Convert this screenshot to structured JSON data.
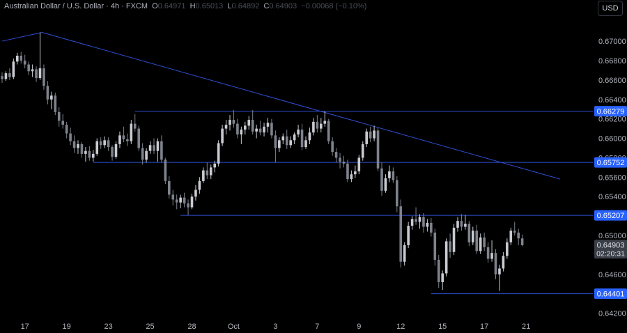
{
  "header": {
    "symbol": "Australian Dollar / U.S. Dollar · 4h · FXCM",
    "open_label": "O",
    "open": "0.64971",
    "high_label": "H",
    "high": "0.65013",
    "low_label": "L",
    "low": "0.64892",
    "close_label": "C",
    "close": "0.64903",
    "change": "−0.00068 (−0.10%)"
  },
  "currency_button": "USD",
  "colors": {
    "background": "#000000",
    "candle": "#c9cbd1",
    "candle_dim": "#7e828c",
    "line": "#2f4fd6",
    "label_blue": "#2962ff",
    "label_gray": "#3a3e47"
  },
  "chart_data": {
    "type": "candlestick",
    "ylim": [
      0.6414,
      0.6728
    ],
    "y_ticks": [
      "0.64200",
      "0.64400",
      "0.64600",
      "0.64800",
      "0.65000",
      "0.65200",
      "0.65400",
      "0.65600",
      "0.65800",
      "0.66000",
      "0.66200",
      "0.66400",
      "0.66600",
      "0.66800",
      "0.67000"
    ],
    "x_ticks": [
      {
        "label": "17",
        "i": 6
      },
      {
        "label": "19",
        "i": 17
      },
      {
        "label": "23",
        "i": 28
      },
      {
        "label": "25",
        "i": 39
      },
      {
        "label": "28",
        "i": 50
      },
      {
        "label": "Oct",
        "i": 61
      },
      {
        "label": "3",
        "i": 72
      },
      {
        "label": "7",
        "i": 83
      },
      {
        "label": "9",
        "i": 94
      },
      {
        "label": "12",
        "i": 105
      },
      {
        "label": "15",
        "i": 116
      },
      {
        "label": "17",
        "i": 127
      },
      {
        "label": "21",
        "i": 138
      }
    ],
    "levels": [
      {
        "value": 0.66279,
        "label": "0.66279",
        "from_i": 35
      },
      {
        "value": 0.65752,
        "label": "0.65752",
        "from_i": 24
      },
      {
        "value": 0.65207,
        "label": "0.65207",
        "from_i": 47
      },
      {
        "value": 0.64401,
        "label": "0.64401",
        "from_i": 113
      }
    ],
    "trendlines": [
      {
        "from": [
          0,
          0.67
        ],
        "to": [
          10.5,
          0.6709
        ]
      },
      {
        "from": [
          10.5,
          0.6709
        ],
        "to": [
          147,
          0.6558
        ]
      }
    ],
    "last_price": {
      "value": 0.64903,
      "label": "0.64903",
      "countdown": "02:20:31"
    },
    "candles": [
      [
        0.6664,
        0.6668,
        0.6657,
        0.6661
      ],
      [
        0.6661,
        0.6669,
        0.6659,
        0.6667
      ],
      [
        0.6667,
        0.6672,
        0.666,
        0.6663
      ],
      [
        0.6663,
        0.6682,
        0.6661,
        0.6679
      ],
      [
        0.6679,
        0.6688,
        0.6676,
        0.6685
      ],
      [
        0.6685,
        0.6689,
        0.6677,
        0.668
      ],
      [
        0.668,
        0.6686,
        0.6672,
        0.6676
      ],
      [
        0.6676,
        0.6679,
        0.6665,
        0.6669
      ],
      [
        0.6669,
        0.6676,
        0.6663,
        0.6671
      ],
      [
        0.6671,
        0.6674,
        0.6658,
        0.6662
      ],
      [
        0.6662,
        0.6709,
        0.666,
        0.6672
      ],
      [
        0.6672,
        0.6676,
        0.665,
        0.6654
      ],
      [
        0.6654,
        0.6659,
        0.6635,
        0.664
      ],
      [
        0.664,
        0.6648,
        0.663,
        0.6644
      ],
      [
        0.6644,
        0.6647,
        0.6624,
        0.6627
      ],
      [
        0.6627,
        0.6632,
        0.6612,
        0.6618
      ],
      [
        0.6618,
        0.6625,
        0.661,
        0.6614
      ],
      [
        0.6614,
        0.6617,
        0.66,
        0.6605
      ],
      [
        0.6605,
        0.6611,
        0.6593,
        0.6597
      ],
      [
        0.6597,
        0.6603,
        0.6585,
        0.659
      ],
      [
        0.659,
        0.6598,
        0.6584,
        0.6594
      ],
      [
        0.6594,
        0.6596,
        0.658,
        0.6584
      ],
      [
        0.6584,
        0.6591,
        0.6576,
        0.6587
      ],
      [
        0.6587,
        0.6592,
        0.6577,
        0.658
      ],
      [
        0.658,
        0.6588,
        0.6576,
        0.6584
      ],
      [
        0.6584,
        0.66,
        0.6582,
        0.6597
      ],
      [
        0.6597,
        0.6601,
        0.6589,
        0.6593
      ],
      [
        0.6593,
        0.6602,
        0.659,
        0.6598
      ],
      [
        0.6598,
        0.6601,
        0.6587,
        0.6591
      ],
      [
        0.6591,
        0.6593,
        0.6577,
        0.6581
      ],
      [
        0.6581,
        0.6597,
        0.6579,
        0.6594
      ],
      [
        0.6594,
        0.6607,
        0.659,
        0.6603
      ],
      [
        0.6603,
        0.6612,
        0.6596,
        0.6599
      ],
      [
        0.6599,
        0.6605,
        0.6592,
        0.6597
      ],
      [
        0.6597,
        0.6619,
        0.6594,
        0.6615
      ],
      [
        0.6615,
        0.6625,
        0.6607,
        0.661
      ],
      [
        0.661,
        0.6613,
        0.6587,
        0.659
      ],
      [
        0.659,
        0.6595,
        0.6573,
        0.6578
      ],
      [
        0.6578,
        0.659,
        0.6575,
        0.6587
      ],
      [
        0.6587,
        0.6597,
        0.6584,
        0.6593
      ],
      [
        0.6593,
        0.66,
        0.6584,
        0.6587
      ],
      [
        0.6587,
        0.66,
        0.6576,
        0.6597
      ],
      [
        0.6597,
        0.6603,
        0.6575,
        0.6578
      ],
      [
        0.6578,
        0.658,
        0.6553,
        0.6556
      ],
      [
        0.6556,
        0.6561,
        0.6538,
        0.6542
      ],
      [
        0.6542,
        0.6547,
        0.6531,
        0.6537
      ],
      [
        0.6537,
        0.6542,
        0.6527,
        0.6534
      ],
      [
        0.6534,
        0.6542,
        0.6528,
        0.6539
      ],
      [
        0.6539,
        0.6544,
        0.6529,
        0.6533
      ],
      [
        0.6533,
        0.6537,
        0.6521,
        0.6529
      ],
      [
        0.6529,
        0.6543,
        0.6527,
        0.654
      ],
      [
        0.654,
        0.6552,
        0.6536,
        0.6547
      ],
      [
        0.6547,
        0.656,
        0.6543,
        0.6556
      ],
      [
        0.6556,
        0.657,
        0.6554,
        0.6567
      ],
      [
        0.6567,
        0.6575,
        0.6558,
        0.6562
      ],
      [
        0.6562,
        0.6573,
        0.6558,
        0.657
      ],
      [
        0.657,
        0.6577,
        0.6565,
        0.6574
      ],
      [
        0.6574,
        0.6598,
        0.6571,
        0.6595
      ],
      [
        0.6595,
        0.6614,
        0.6592,
        0.661
      ],
      [
        0.661,
        0.6619,
        0.6604,
        0.6614
      ],
      [
        0.6614,
        0.6624,
        0.6608,
        0.6619
      ],
      [
        0.6619,
        0.6629,
        0.6611,
        0.6615
      ],
      [
        0.6615,
        0.662,
        0.66,
        0.6604
      ],
      [
        0.6604,
        0.6612,
        0.6594,
        0.6609
      ],
      [
        0.6609,
        0.6617,
        0.6604,
        0.6613
      ],
      [
        0.6613,
        0.6623,
        0.6609,
        0.6619
      ],
      [
        0.6619,
        0.6629,
        0.6604,
        0.6607
      ],
      [
        0.6607,
        0.6614,
        0.66,
        0.661
      ],
      [
        0.661,
        0.6618,
        0.6603,
        0.6606
      ],
      [
        0.6606,
        0.6616,
        0.6602,
        0.6612
      ],
      [
        0.6612,
        0.6621,
        0.6606,
        0.6616
      ],
      [
        0.6616,
        0.662,
        0.66,
        0.6603
      ],
      [
        0.6603,
        0.6608,
        0.6575,
        0.659
      ],
      [
        0.659,
        0.6601,
        0.6586,
        0.6598
      ],
      [
        0.6598,
        0.6605,
        0.6594,
        0.6602
      ],
      [
        0.6602,
        0.6609,
        0.6589,
        0.6593
      ],
      [
        0.6593,
        0.6602,
        0.659,
        0.6598
      ],
      [
        0.6598,
        0.6606,
        0.6594,
        0.6604
      ],
      [
        0.6604,
        0.6614,
        0.6601,
        0.6609
      ],
      [
        0.6609,
        0.6615,
        0.6588,
        0.6591
      ],
      [
        0.6591,
        0.6602,
        0.6589,
        0.6598
      ],
      [
        0.6598,
        0.6611,
        0.6594,
        0.6606
      ],
      [
        0.6606,
        0.6621,
        0.6603,
        0.6617
      ],
      [
        0.6617,
        0.6624,
        0.6606,
        0.661
      ],
      [
        0.661,
        0.6621,
        0.6606,
        0.6615
      ],
      [
        0.6615,
        0.6628,
        0.6612,
        0.6618
      ],
      [
        0.6618,
        0.662,
        0.6594,
        0.6597
      ],
      [
        0.6597,
        0.6601,
        0.6582,
        0.6586
      ],
      [
        0.6586,
        0.659,
        0.6575,
        0.658
      ],
      [
        0.658,
        0.6585,
        0.6569,
        0.6576
      ],
      [
        0.6576,
        0.6582,
        0.657,
        0.6574
      ],
      [
        0.6574,
        0.6578,
        0.6555,
        0.6558
      ],
      [
        0.6558,
        0.6567,
        0.6555,
        0.6563
      ],
      [
        0.6563,
        0.6572,
        0.6559,
        0.6566
      ],
      [
        0.6566,
        0.6583,
        0.6563,
        0.658
      ],
      [
        0.658,
        0.6597,
        0.6577,
        0.6594
      ],
      [
        0.6594,
        0.661,
        0.6591,
        0.6607
      ],
      [
        0.6607,
        0.6612,
        0.6596,
        0.66
      ],
      [
        0.66,
        0.6613,
        0.6597,
        0.6608
      ],
      [
        0.6608,
        0.6611,
        0.6566,
        0.6569
      ],
      [
        0.6569,
        0.6575,
        0.6541,
        0.6546
      ],
      [
        0.6546,
        0.6563,
        0.6544,
        0.6559
      ],
      [
        0.6559,
        0.6572,
        0.6555,
        0.6566
      ],
      [
        0.6566,
        0.657,
        0.6554,
        0.6557
      ],
      [
        0.6557,
        0.6561,
        0.6524,
        0.653
      ],
      [
        0.653,
        0.6537,
        0.6467,
        0.6473
      ],
      [
        0.6473,
        0.6493,
        0.6469,
        0.649
      ],
      [
        0.649,
        0.6514,
        0.6487,
        0.651
      ],
      [
        0.651,
        0.652,
        0.6506,
        0.6517
      ],
      [
        0.6517,
        0.6529,
        0.6511,
        0.6514
      ],
      [
        0.6514,
        0.6522,
        0.6507,
        0.6519
      ],
      [
        0.6519,
        0.6523,
        0.6503,
        0.6509
      ],
      [
        0.6509,
        0.6517,
        0.6504,
        0.6513
      ],
      [
        0.6513,
        0.6518,
        0.6499,
        0.6503
      ],
      [
        0.6503,
        0.6507,
        0.6469,
        0.6475
      ],
      [
        0.6475,
        0.648,
        0.6446,
        0.6452
      ],
      [
        0.6452,
        0.6464,
        0.6444,
        0.6461
      ],
      [
        0.6461,
        0.6497,
        0.6458,
        0.6494
      ],
      [
        0.6494,
        0.6502,
        0.6477,
        0.6483
      ],
      [
        0.6483,
        0.6512,
        0.648,
        0.6508
      ],
      [
        0.6508,
        0.6519,
        0.6504,
        0.6515
      ],
      [
        0.6515,
        0.6522,
        0.6505,
        0.6509
      ],
      [
        0.6509,
        0.6521,
        0.6506,
        0.6512
      ],
      [
        0.6512,
        0.6515,
        0.6489,
        0.6493
      ],
      [
        0.6493,
        0.6509,
        0.649,
        0.6505
      ],
      [
        0.6505,
        0.6511,
        0.6481,
        0.6484
      ],
      [
        0.6484,
        0.6502,
        0.6481,
        0.6498
      ],
      [
        0.6498,
        0.6503,
        0.6484,
        0.6488
      ],
      [
        0.6488,
        0.6493,
        0.6472,
        0.6476
      ],
      [
        0.6476,
        0.6495,
        0.6473,
        0.6482
      ],
      [
        0.6482,
        0.6486,
        0.6455,
        0.646
      ],
      [
        0.646,
        0.647,
        0.6443,
        0.6466
      ],
      [
        0.6466,
        0.6483,
        0.6463,
        0.6479
      ],
      [
        0.6479,
        0.6497,
        0.6476,
        0.6493
      ],
      [
        0.6493,
        0.6508,
        0.649,
        0.6505
      ],
      [
        0.6505,
        0.6514,
        0.65,
        0.6503
      ],
      [
        0.6503,
        0.6507,
        0.649,
        0.6497
      ],
      [
        0.6497,
        0.6501,
        0.6489,
        0.649
      ]
    ]
  }
}
